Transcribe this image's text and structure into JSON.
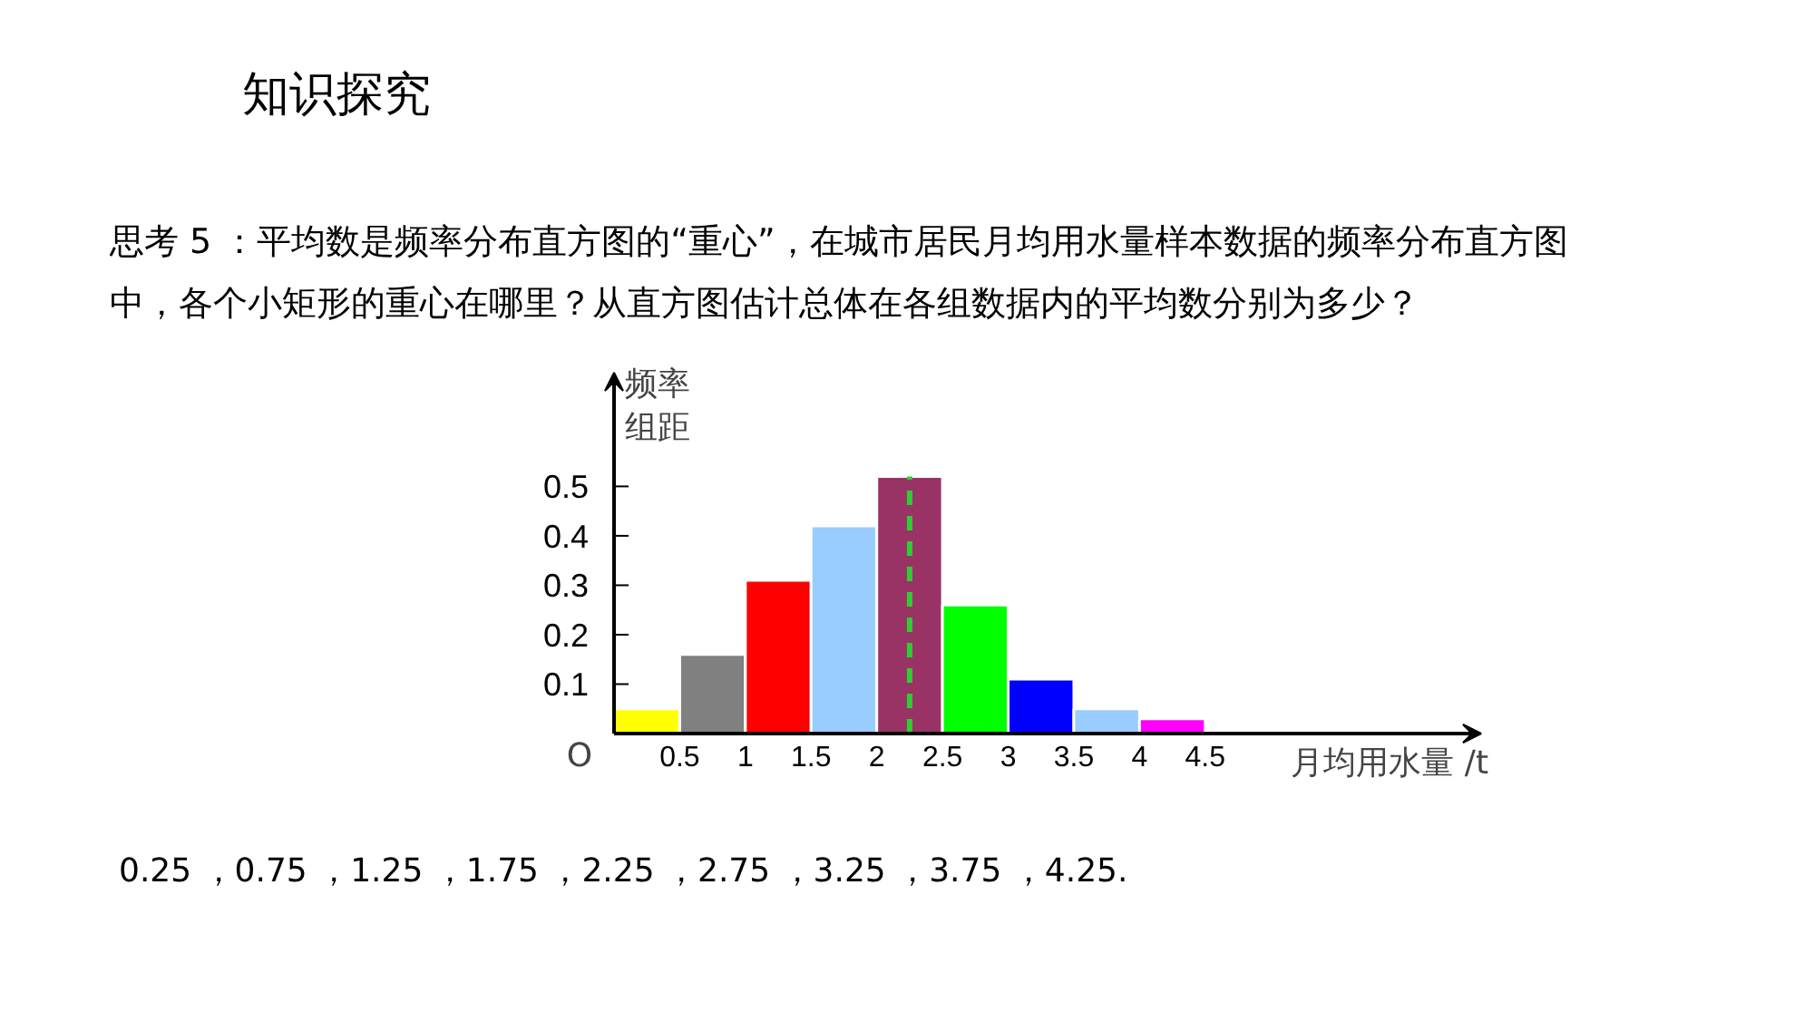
{
  "chart_data": {
    "type": "histogram",
    "title": "知识探究",
    "subtitle": "思考 5 ：平均数是频率分布直方图的“重心”，在城市居民月均用水量样本数据的频率分布直方图中，各个小矩形的重心在哪里？从直方图估计总体在各组数据内的平均数分别为多少？",
    "xlabel": "月均用水量 /t",
    "ylabel": "频率组距",
    "bins": [
      0,
      0.5,
      1,
      1.5,
      2,
      2.5,
      3,
      3.5,
      4,
      4.5
    ],
    "values": [
      0.05,
      0.16,
      0.31,
      0.42,
      0.52,
      0.26,
      0.11,
      0.05,
      0.03
    ],
    "colors": [
      "#ffff00",
      "#808080",
      "#ff0000",
      "#99ccff",
      "#993366",
      "#00ff00",
      "#0000ff",
      "#99ccff",
      "#ff00ff"
    ],
    "xlim": [
      0,
      6.6
    ],
    "ylim": [
      0,
      0.73
    ],
    "xticks": [
      0.5,
      1,
      1.5,
      2,
      2.5,
      3,
      3.5,
      4,
      4.5
    ],
    "yticks": [
      {
        "value": 0,
        "label": null
      },
      0.1,
      0.2,
      0.3,
      0.4,
      0.5
    ],
    "ref_lines": [
      {
        "axis": "x",
        "value": 2.25,
        "color": "#33cc33",
        "line_style": "dashed"
      }
    ],
    "annotations": [
      {
        "text": "O",
        "x": 0,
        "y": 0
      },
      "0.25 ，0.75 ，1.25 ，1.75 ，2.25 ，2.75 ，3.25 ，3.75 ，4.25."
    ],
    "grid": false,
    "legend": false
  }
}
